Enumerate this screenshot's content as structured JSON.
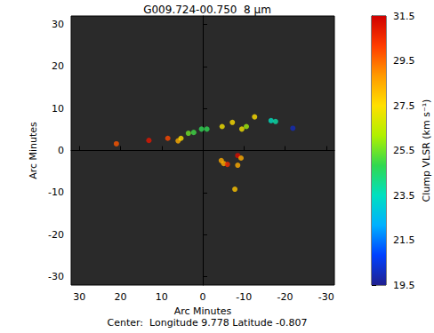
{
  "chart_data": {
    "type": "scatter",
    "title": "G009.724-00.750  8 µm",
    "subtitle": "Center:  Longitude 9.778 Latitude -0.807",
    "xlabel": "Arc Minutes",
    "ylabel": "Arc Minutes",
    "x": [
      21.0,
      13.1,
      8.5,
      6.0,
      5.3,
      3.5,
      2.2,
      0.3,
      -1.0,
      -4.7,
      -7.2,
      -9.5,
      -10.6,
      -12.6,
      -16.6,
      -17.7,
      -21.9,
      -4.5,
      -5.1,
      -6.0,
      -8.5,
      -8.5,
      -7.8,
      -9.3
    ],
    "y": [
      1.6,
      2.4,
      2.9,
      2.3,
      2.9,
      4.1,
      4.3,
      5.1,
      5.1,
      5.7,
      6.7,
      5.1,
      5.7,
      8.0,
      7.1,
      6.9,
      5.3,
      -2.4,
      -3.1,
      -3.3,
      -1.2,
      -3.5,
      -9.2,
      -1.8
    ],
    "v_lsr": [
      29.8,
      31.0,
      30.0,
      28.5,
      27.5,
      25.5,
      25.0,
      24.8,
      24.8,
      27.3,
      27.5,
      27.3,
      26.0,
      27.5,
      23.5,
      23.8,
      20.0,
      28.5,
      28.5,
      30.5,
      31.2,
      28.5,
      28.0,
      28.5
    ],
    "xlim": [
      32,
      -32
    ],
    "ylim": [
      -32,
      32
    ],
    "xticks": [
      30,
      20,
      10,
      0,
      -10,
      -20,
      -30
    ],
    "yticks": [
      -30,
      -20,
      -10,
      0,
      10,
      20,
      30
    ],
    "colorbar": {
      "label": "Clump VLSR (km s⁻¹)",
      "range": [
        19.5,
        31.5
      ],
      "ticks": [
        19.5,
        21.5,
        23.5,
        25.5,
        27.5,
        29.5,
        31.5
      ]
    },
    "grid": false
  }
}
